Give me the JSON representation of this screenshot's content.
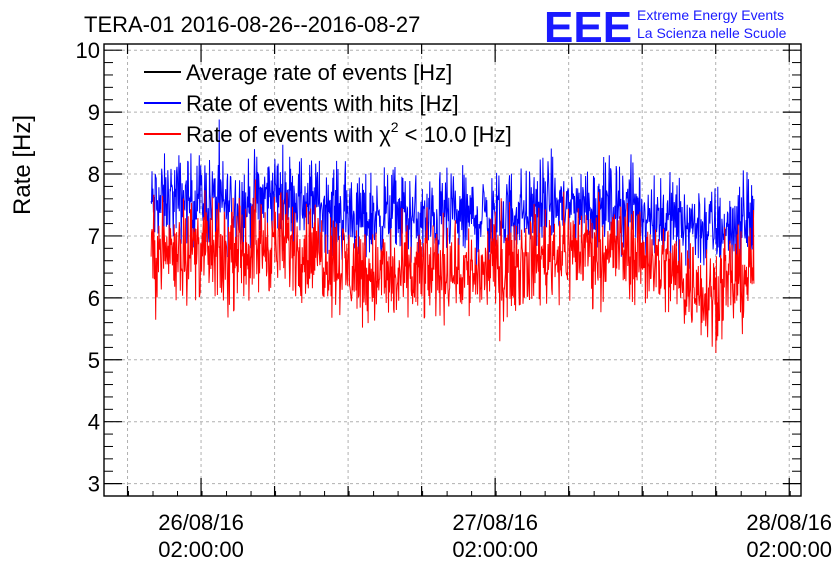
{
  "chart_data": {
    "type": "line",
    "title": "TERA-01 2016-08-26--2016-08-27",
    "ylabel": "Rate [Hz]",
    "xlabel": "",
    "ylim": [
      2.8,
      10.1
    ],
    "xlim": [
      -0.33,
      2.04
    ],
    "x_unit": "days since 26/08/16 02:00:00",
    "y_ticks": [
      3,
      4,
      5,
      6,
      7,
      8,
      9,
      10
    ],
    "x_ticks": [
      {
        "x": 0,
        "date": "26/08/16",
        "time": "02:00:00"
      },
      {
        "x": 1,
        "date": "27/08/16",
        "time": "02:00:00"
      },
      {
        "x": 2,
        "date": "28/08/16",
        "time": "02:00:00"
      }
    ],
    "grid": true,
    "legend_position": "top-left",
    "series": [
      {
        "name": "Average rate of events [Hz]",
        "color": "#000000",
        "x": [],
        "y": []
      },
      {
        "name": "Rate of events with hits [Hz]",
        "color": "#0000ff",
        "x": [
          -0.17,
          -0.08,
          0.0,
          0.08,
          0.17,
          0.25,
          0.33,
          0.42,
          0.5,
          0.58,
          0.67,
          0.75,
          0.83,
          0.92,
          1.0,
          1.08,
          1.17,
          1.25,
          1.33,
          1.42,
          1.5,
          1.58,
          1.67,
          1.75,
          1.83,
          1.88
        ],
        "y": [
          7.5,
          7.6,
          7.6,
          7.5,
          7.5,
          7.7,
          7.6,
          7.5,
          7.3,
          7.3,
          7.4,
          7.2,
          7.3,
          7.3,
          7.3,
          7.4,
          7.5,
          7.5,
          7.5,
          7.5,
          7.4,
          7.3,
          7.2,
          7.1,
          7.2,
          7.3
        ],
        "noise": 0.35
      },
      {
        "name": "Rate of events with χ² < 10.0 [Hz]",
        "color": "#ff0000",
        "x": [
          -0.17,
          -0.08,
          0.0,
          0.08,
          0.17,
          0.25,
          0.33,
          0.42,
          0.5,
          0.58,
          0.67,
          0.75,
          0.83,
          0.92,
          1.0,
          1.08,
          1.17,
          1.25,
          1.33,
          1.42,
          1.5,
          1.58,
          1.67,
          1.75,
          1.83,
          1.88
        ],
        "y": [
          6.7,
          6.8,
          6.8,
          6.6,
          6.8,
          6.9,
          6.8,
          6.7,
          6.5,
          6.4,
          6.3,
          6.4,
          6.5,
          6.4,
          6.5,
          6.6,
          6.7,
          6.8,
          6.8,
          6.8,
          6.7,
          6.5,
          6.2,
          6.1,
          6.3,
          6.5
        ],
        "noise": 0.4
      }
    ]
  },
  "legend": {
    "entries": [
      {
        "label_pre": "Average rate of events [Hz]",
        "label_sup": "",
        "label_post": ""
      },
      {
        "label_pre": "Rate of events with hits [Hz]",
        "label_sup": "",
        "label_post": ""
      },
      {
        "label_pre": "Rate of events with χ",
        "label_sup": "2",
        "label_post": " < 10.0 [Hz]"
      }
    ]
  },
  "branding": {
    "logo_text": "EEE",
    "line1": "Extreme Energy Events",
    "line2": "La Scienza nelle Scuole",
    "color": "#1a1aff"
  }
}
